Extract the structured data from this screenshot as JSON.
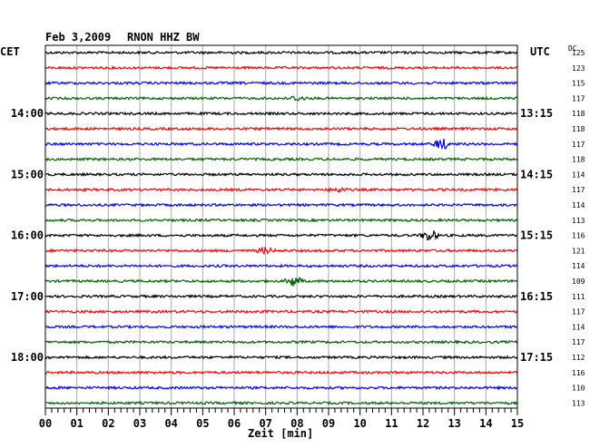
{
  "header": {
    "date": "Feb 3,2009",
    "station": "RNON HHZ BW",
    "left_zone": "CET",
    "right_zone": "UTC",
    "dc_label": "DC"
  },
  "chart_data": {
    "type": "line",
    "title": "Feb 3,2009   RNON HHZ BW",
    "xlabel": "Zeit [min]",
    "xlim": [
      0,
      15
    ],
    "x_ticks": [
      "00",
      "01",
      "02",
      "03",
      "04",
      "05",
      "06",
      "07",
      "08",
      "09",
      "10",
      "11",
      "12",
      "13",
      "14",
      "15"
    ],
    "grid": true,
    "series_colors": [
      "#000000",
      "#ff0000",
      "#0000ff",
      "#006400"
    ],
    "left_time_labels": [
      {
        "row": 4,
        "label": "14:00"
      },
      {
        "row": 8,
        "label": "15:00"
      },
      {
        "row": 12,
        "label": "16:00"
      },
      {
        "row": 16,
        "label": "17:00"
      },
      {
        "row": 20,
        "label": "18:00"
      }
    ],
    "right_time_labels": [
      {
        "row": 4,
        "label": "13:15"
      },
      {
        "row": 8,
        "label": "14:15"
      },
      {
        "row": 12,
        "label": "15:15"
      },
      {
        "row": 16,
        "label": "16:15"
      },
      {
        "row": 20,
        "label": "17:15"
      }
    ],
    "dc_offsets": [
      "125",
      "123",
      "115",
      "117",
      "118",
      "118",
      "117",
      "118",
      "114",
      "117",
      "114",
      "113",
      "116",
      "121",
      "114",
      "109",
      "111",
      "117",
      "114",
      "117",
      "112",
      "116",
      "110",
      "113"
    ],
    "traces": 24,
    "events": [
      {
        "row": 6,
        "minute": 12.6,
        "size": 6
      },
      {
        "row": 12,
        "minute": 12.2,
        "size": 6
      },
      {
        "row": 15,
        "minute": 7.9,
        "size": 6
      },
      {
        "row": 13,
        "minute": 7.0,
        "size": 3
      },
      {
        "row": 9,
        "minute": 9.3,
        "size": 2.5
      },
      {
        "row": 3,
        "minute": 8.0,
        "size": 2.5
      }
    ]
  }
}
